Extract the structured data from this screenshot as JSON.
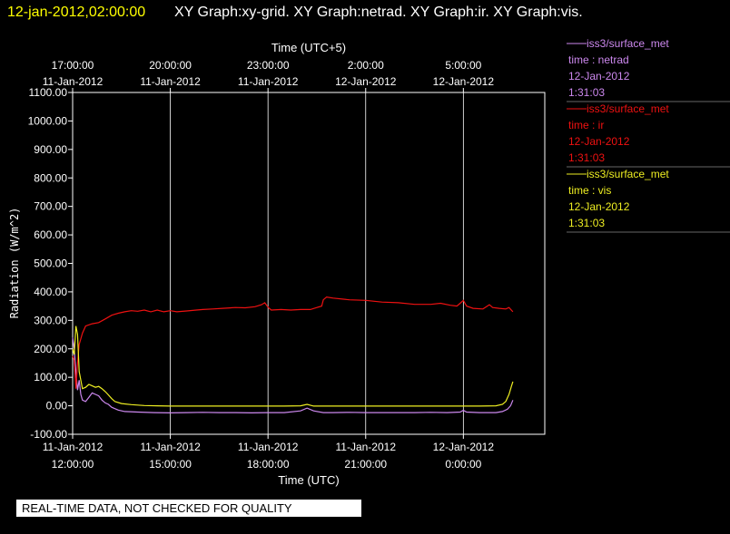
{
  "banner": {
    "date": "12-jan-2012,02:00:00",
    "title": "XY Graph:xy-grid.  XY Graph:netrad.  XY Graph:ir.  XY Graph:vis."
  },
  "note": "REAL-TIME DATA, NOT CHECKED FOR QUALITY",
  "colors": {
    "background": "#000000",
    "netrad": "#cc88ee",
    "ir": "#ee1111",
    "vis": "#eeee22",
    "grid": "#ffffff"
  },
  "chart_data": {
    "type": "line",
    "xlabel": "Time (UTC)",
    "x2label": "Time (UTC+5)",
    "ylabel": "Radiation (W/m^2)",
    "xlim": [
      0,
      14.5
    ],
    "ylim": [
      -100,
      1100
    ],
    "xticks": [
      {
        "x": 0,
        "date": "11-Jan-2012",
        "time": "12:00:00"
      },
      {
        "x": 3,
        "date": "11-Jan-2012",
        "time": "15:00:00"
      },
      {
        "x": 6,
        "date": "11-Jan-2012",
        "time": "18:00:00"
      },
      {
        "x": 9,
        "date": "11-Jan-2012",
        "time": "21:00:00"
      },
      {
        "x": 12,
        "date": "12-Jan-2012",
        "time": "0:00:00"
      }
    ],
    "x2ticks": [
      {
        "x": 0,
        "time": "17:00:00",
        "date": "11-Jan-2012"
      },
      {
        "x": 3,
        "time": "20:00:00",
        "date": "11-Jan-2012"
      },
      {
        "x": 6,
        "time": "23:00:00",
        "date": "11-Jan-2012"
      },
      {
        "x": 9,
        "time": "2:00:00",
        "date": "12-Jan-2012"
      },
      {
        "x": 12,
        "time": "5:00:00",
        "date": "12-Jan-2012"
      }
    ],
    "yticks": [
      "-100.00",
      "0.00",
      "100.00",
      "200.00",
      "300.00",
      "400.00",
      "500.00",
      "600.00",
      "700.00",
      "800.00",
      "900.00",
      "1000.00",
      "1100.00"
    ],
    "series": [
      {
        "name": "iss3/surface_met",
        "key": "netrad",
        "legend": [
          "time : netrad",
          "12-Jan-2012",
          "1:31:03"
        ],
        "points": [
          [
            0,
            240
          ],
          [
            0.05,
            200
          ],
          [
            0.1,
            120
          ],
          [
            0.15,
            55
          ],
          [
            0.2,
            90
          ],
          [
            0.25,
            40
          ],
          [
            0.3,
            20
          ],
          [
            0.4,
            15
          ],
          [
            0.5,
            30
          ],
          [
            0.6,
            45
          ],
          [
            0.7,
            40
          ],
          [
            0.8,
            35
          ],
          [
            0.9,
            20
          ],
          [
            1.0,
            10
          ],
          [
            1.1,
            5
          ],
          [
            1.2,
            -5
          ],
          [
            1.4,
            -15
          ],
          [
            1.6,
            -20
          ],
          [
            2.0,
            -22
          ],
          [
            2.5,
            -24
          ],
          [
            3.0,
            -25
          ],
          [
            3.5,
            -24
          ],
          [
            4.0,
            -23
          ],
          [
            4.5,
            -24
          ],
          [
            5.0,
            -24
          ],
          [
            5.5,
            -25
          ],
          [
            6.0,
            -24
          ],
          [
            6.5,
            -24
          ],
          [
            7.0,
            -18
          ],
          [
            7.2,
            -8
          ],
          [
            7.4,
            -18
          ],
          [
            7.7,
            -24
          ],
          [
            8.0,
            -24
          ],
          [
            8.5,
            -23
          ],
          [
            9.0,
            -24
          ],
          [
            9.5,
            -24
          ],
          [
            10.0,
            -24
          ],
          [
            10.5,
            -24
          ],
          [
            11.0,
            -23
          ],
          [
            11.5,
            -24
          ],
          [
            11.9,
            -22
          ],
          [
            12.0,
            -16
          ],
          [
            12.1,
            -22
          ],
          [
            12.5,
            -24
          ],
          [
            13.0,
            -24
          ],
          [
            13.2,
            -20
          ],
          [
            13.35,
            -12
          ],
          [
            13.45,
            0
          ],
          [
            13.52,
            20
          ]
        ]
      },
      {
        "name": "iss3/surface_met",
        "key": "ir",
        "legend": [
          "time : ir",
          "12-Jan-2012",
          "1:31:03"
        ],
        "points": [
          [
            0,
            175
          ],
          [
            0.05,
            160
          ],
          [
            0.1,
            60
          ],
          [
            0.15,
            150
          ],
          [
            0.2,
            215
          ],
          [
            0.3,
            255
          ],
          [
            0.4,
            280
          ],
          [
            0.6,
            288
          ],
          [
            0.8,
            292
          ],
          [
            1.0,
            305
          ],
          [
            1.2,
            318
          ],
          [
            1.4,
            325
          ],
          [
            1.6,
            330
          ],
          [
            1.8,
            334
          ],
          [
            2.0,
            332
          ],
          [
            2.2,
            336
          ],
          [
            2.4,
            330
          ],
          [
            2.6,
            336
          ],
          [
            2.8,
            330
          ],
          [
            3.0,
            334
          ],
          [
            3.2,
            330
          ],
          [
            3.5,
            333
          ],
          [
            3.8,
            336
          ],
          [
            4.0,
            338
          ],
          [
            4.3,
            340
          ],
          [
            4.6,
            342
          ],
          [
            5.0,
            345
          ],
          [
            5.3,
            344
          ],
          [
            5.6,
            348
          ],
          [
            5.8,
            355
          ],
          [
            5.9,
            362
          ],
          [
            6.0,
            346
          ],
          [
            6.1,
            336
          ],
          [
            6.4,
            338
          ],
          [
            6.7,
            336
          ],
          [
            7.0,
            338
          ],
          [
            7.3,
            338
          ],
          [
            7.5,
            345
          ],
          [
            7.65,
            350
          ],
          [
            7.7,
            372
          ],
          [
            7.8,
            382
          ],
          [
            8.0,
            378
          ],
          [
            8.5,
            372
          ],
          [
            9.0,
            370
          ],
          [
            9.5,
            364
          ],
          [
            10.0,
            362
          ],
          [
            10.5,
            356
          ],
          [
            11.0,
            356
          ],
          [
            11.3,
            360
          ],
          [
            11.6,
            353
          ],
          [
            11.8,
            350
          ],
          [
            11.9,
            360
          ],
          [
            12.0,
            370
          ],
          [
            12.1,
            350
          ],
          [
            12.3,
            342
          ],
          [
            12.6,
            340
          ],
          [
            12.8,
            355
          ],
          [
            12.9,
            345
          ],
          [
            13.1,
            342
          ],
          [
            13.3,
            340
          ],
          [
            13.4,
            345
          ],
          [
            13.52,
            330
          ]
        ]
      },
      {
        "name": "iss3/surface_met",
        "key": "vis",
        "legend": [
          "time : vis",
          "12-Jan-2012",
          "1:31:03"
        ],
        "points": [
          [
            0,
            200
          ],
          [
            0.05,
            180
          ],
          [
            0.1,
            280
          ],
          [
            0.15,
            250
          ],
          [
            0.2,
            120
          ],
          [
            0.25,
            90
          ],
          [
            0.3,
            60
          ],
          [
            0.4,
            65
          ],
          [
            0.5,
            75
          ],
          [
            0.6,
            70
          ],
          [
            0.7,
            65
          ],
          [
            0.8,
            68
          ],
          [
            0.9,
            60
          ],
          [
            1.0,
            50
          ],
          [
            1.1,
            38
          ],
          [
            1.2,
            25
          ],
          [
            1.3,
            15
          ],
          [
            1.5,
            8
          ],
          [
            1.8,
            4
          ],
          [
            2.2,
            1
          ],
          [
            2.6,
            0
          ],
          [
            3.0,
            -1
          ],
          [
            4.0,
            -1
          ],
          [
            5.0,
            -1
          ],
          [
            6.0,
            -1
          ],
          [
            6.5,
            -1
          ],
          [
            7.0,
            0
          ],
          [
            7.2,
            5
          ],
          [
            7.4,
            -1
          ],
          [
            8.0,
            -1
          ],
          [
            9.0,
            -1
          ],
          [
            10.0,
            -1
          ],
          [
            11.0,
            -1
          ],
          [
            12.0,
            -1
          ],
          [
            12.5,
            -1
          ],
          [
            13.0,
            0
          ],
          [
            13.2,
            5
          ],
          [
            13.3,
            15
          ],
          [
            13.4,
            40
          ],
          [
            13.48,
            70
          ],
          [
            13.52,
            85
          ]
        ]
      }
    ]
  }
}
